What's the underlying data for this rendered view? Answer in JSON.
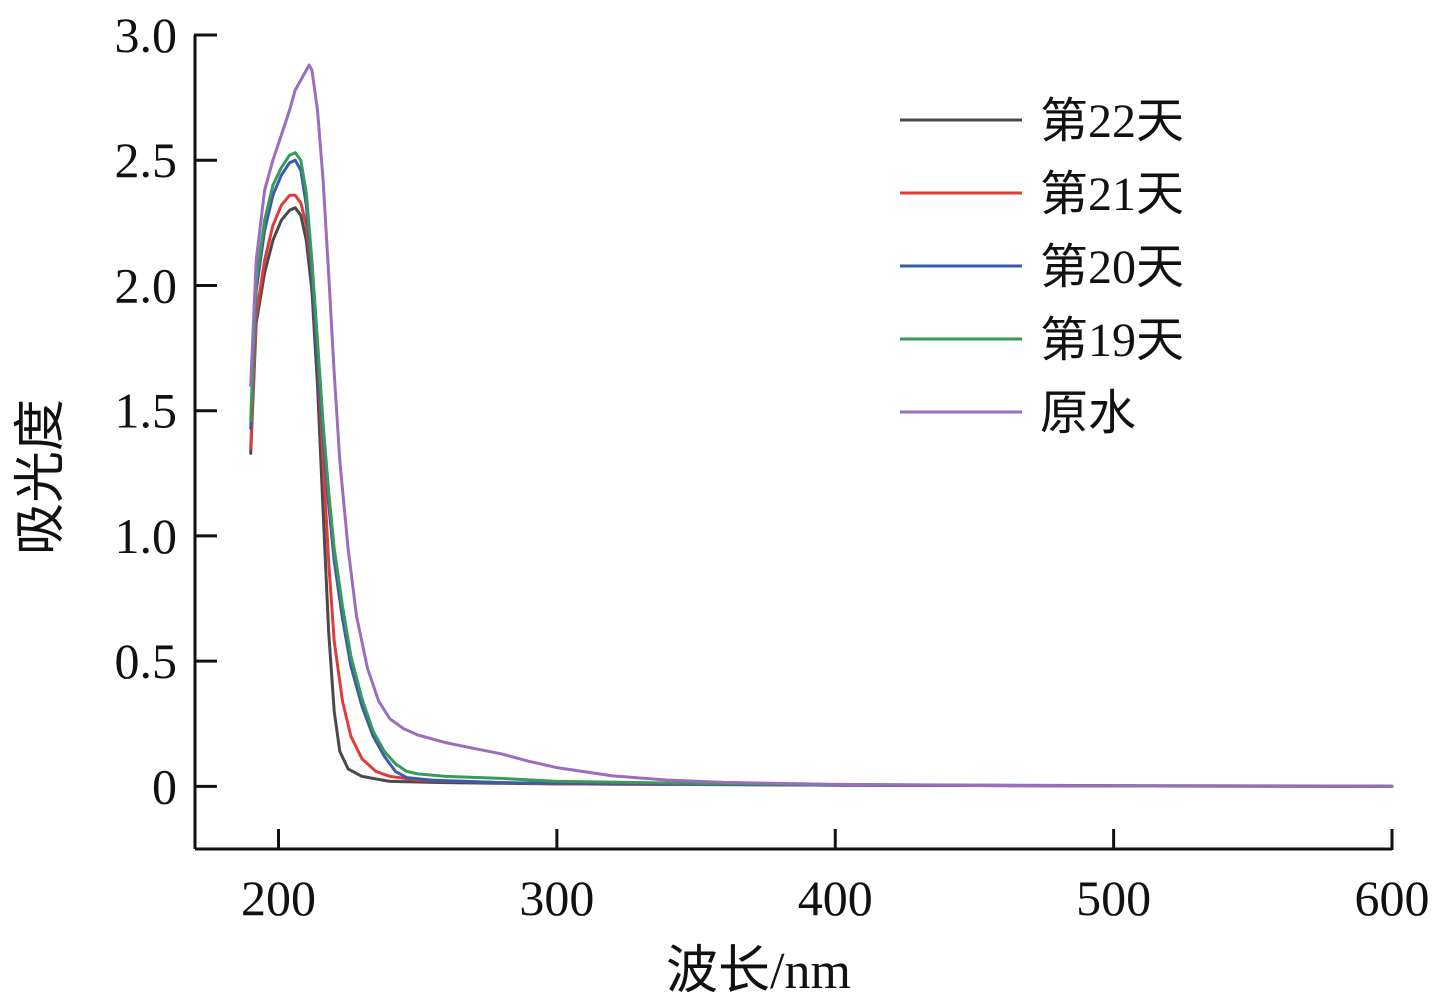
{
  "chart_data": {
    "type": "line",
    "title": "",
    "xlabel": "波长/nm",
    "ylabel": "吸光度",
    "xlim": [
      170,
      600
    ],
    "ylim": [
      -0.25,
      3.0
    ],
    "x_ticks": [
      200,
      300,
      400,
      500,
      600
    ],
    "y_ticks": [
      0,
      0.5,
      1.0,
      1.5,
      2.0,
      2.5,
      3.0
    ],
    "x_tick_labels": [
      "200",
      "300",
      "400",
      "500",
      "600"
    ],
    "y_tick_labels": [
      "0",
      "0.5",
      "1.0",
      "1.5",
      "2.0",
      "2.5",
      "3.0"
    ],
    "grid": false,
    "legend_position": "top-right",
    "series": [
      {
        "name": "第22天",
        "color": "#4a4a4a",
        "points": [
          [
            190,
            1.33
          ],
          [
            192,
            1.85
          ],
          [
            195,
            2.05
          ],
          [
            198,
            2.18
          ],
          [
            201,
            2.26
          ],
          [
            204,
            2.3
          ],
          [
            206,
            2.31
          ],
          [
            208,
            2.28
          ],
          [
            210,
            2.18
          ],
          [
            212,
            1.98
          ],
          [
            214,
            1.6
          ],
          [
            216,
            1.1
          ],
          [
            218,
            0.62
          ],
          [
            220,
            0.3
          ],
          [
            222,
            0.14
          ],
          [
            225,
            0.07
          ],
          [
            230,
            0.04
          ],
          [
            240,
            0.02
          ],
          [
            260,
            0.015
          ],
          [
            300,
            0.01
          ],
          [
            400,
            0.005
          ],
          [
            500,
            0.002
          ],
          [
            600,
            0.0
          ]
        ]
      },
      {
        "name": "第21天",
        "color": "#e03c3c",
        "points": [
          [
            190,
            1.35
          ],
          [
            192,
            1.88
          ],
          [
            195,
            2.1
          ],
          [
            198,
            2.24
          ],
          [
            201,
            2.32
          ],
          [
            204,
            2.36
          ],
          [
            206,
            2.36
          ],
          [
            208,
            2.33
          ],
          [
            210,
            2.24
          ],
          [
            212,
            2.05
          ],
          [
            214,
            1.72
          ],
          [
            216,
            1.3
          ],
          [
            218,
            0.9
          ],
          [
            220,
            0.58
          ],
          [
            223,
            0.34
          ],
          [
            226,
            0.2
          ],
          [
            230,
            0.11
          ],
          [
            235,
            0.06
          ],
          [
            240,
            0.04
          ],
          [
            250,
            0.025
          ],
          [
            280,
            0.015
          ],
          [
            300,
            0.01
          ],
          [
            400,
            0.005
          ],
          [
            500,
            0.002
          ],
          [
            600,
            0.0
          ]
        ]
      },
      {
        "name": "第20天",
        "color": "#3a5bab",
        "points": [
          [
            190,
            1.43
          ],
          [
            192,
            1.98
          ],
          [
            195,
            2.22
          ],
          [
            198,
            2.36
          ],
          [
            201,
            2.44
          ],
          [
            204,
            2.49
          ],
          [
            206,
            2.5
          ],
          [
            208,
            2.46
          ],
          [
            210,
            2.32
          ],
          [
            212,
            2.05
          ],
          [
            214,
            1.72
          ],
          [
            216,
            1.4
          ],
          [
            218,
            1.13
          ],
          [
            220,
            0.9
          ],
          [
            223,
            0.67
          ],
          [
            226,
            0.48
          ],
          [
            230,
            0.32
          ],
          [
            234,
            0.2
          ],
          [
            238,
            0.12
          ],
          [
            242,
            0.06
          ],
          [
            246,
            0.035
          ],
          [
            255,
            0.025
          ],
          [
            280,
            0.015
          ],
          [
            300,
            0.012
          ],
          [
            400,
            0.005
          ],
          [
            500,
            0.002
          ],
          [
            600,
            0.0
          ]
        ]
      },
      {
        "name": "第19天",
        "color": "#3a9a5a",
        "points": [
          [
            190,
            1.46
          ],
          [
            192,
            2.02
          ],
          [
            195,
            2.26
          ],
          [
            198,
            2.4
          ],
          [
            201,
            2.47
          ],
          [
            204,
            2.52
          ],
          [
            206,
            2.53
          ],
          [
            208,
            2.5
          ],
          [
            210,
            2.37
          ],
          [
            212,
            2.1
          ],
          [
            214,
            1.78
          ],
          [
            216,
            1.45
          ],
          [
            218,
            1.18
          ],
          [
            220,
            0.95
          ],
          [
            223,
            0.72
          ],
          [
            226,
            0.52
          ],
          [
            230,
            0.35
          ],
          [
            234,
            0.22
          ],
          [
            238,
            0.14
          ],
          [
            242,
            0.09
          ],
          [
            246,
            0.06
          ],
          [
            250,
            0.05
          ],
          [
            260,
            0.04
          ],
          [
            280,
            0.032
          ],
          [
            300,
            0.02
          ],
          [
            350,
            0.012
          ],
          [
            400,
            0.007
          ],
          [
            500,
            0.003
          ],
          [
            600,
            0.001
          ]
        ]
      },
      {
        "name": "原水",
        "color": "#9b6dbd",
        "points": [
          [
            190,
            1.6
          ],
          [
            192,
            2.1
          ],
          [
            195,
            2.38
          ],
          [
            198,
            2.5
          ],
          [
            201,
            2.6
          ],
          [
            204,
            2.7
          ],
          [
            206,
            2.78
          ],
          [
            208,
            2.82
          ],
          [
            210,
            2.86
          ],
          [
            211,
            2.88
          ],
          [
            212,
            2.86
          ],
          [
            213,
            2.78
          ],
          [
            214,
            2.7
          ],
          [
            216,
            2.42
          ],
          [
            218,
            2.05
          ],
          [
            220,
            1.65
          ],
          [
            222,
            1.3
          ],
          [
            225,
            0.95
          ],
          [
            228,
            0.68
          ],
          [
            232,
            0.47
          ],
          [
            236,
            0.34
          ],
          [
            240,
            0.27
          ],
          [
            245,
            0.23
          ],
          [
            250,
            0.205
          ],
          [
            260,
            0.175
          ],
          [
            270,
            0.152
          ],
          [
            280,
            0.13
          ],
          [
            290,
            0.1
          ],
          [
            300,
            0.075
          ],
          [
            320,
            0.042
          ],
          [
            340,
            0.025
          ],
          [
            360,
            0.016
          ],
          [
            400,
            0.008
          ],
          [
            450,
            0.004
          ],
          [
            500,
            0.002
          ],
          [
            550,
            0.001
          ],
          [
            600,
            0.0
          ]
        ]
      }
    ]
  }
}
